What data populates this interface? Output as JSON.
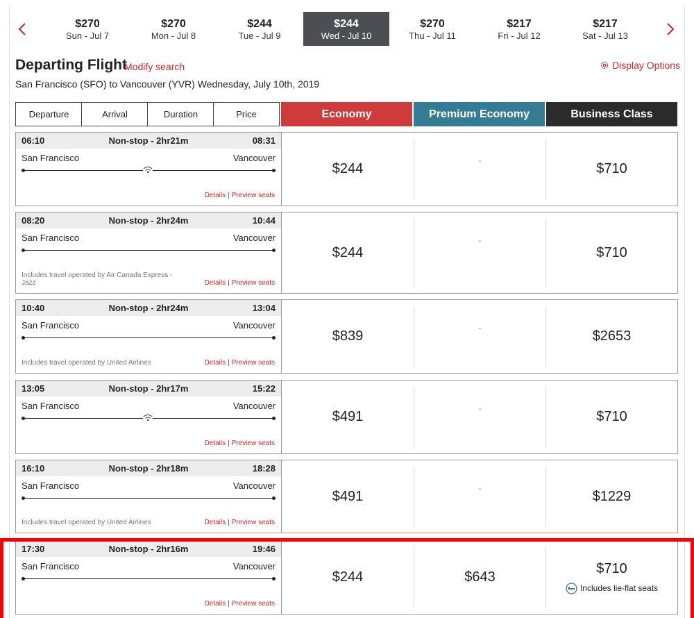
{
  "date_strip": {
    "days": [
      {
        "price": "$270",
        "date": "Sun - Jul 7"
      },
      {
        "price": "$270",
        "date": "Mon - Jul 8"
      },
      {
        "price": "$244",
        "date": "Tue - Jul 9"
      },
      {
        "price": "$244",
        "date": "Wed - Jul 10"
      },
      {
        "price": "$270",
        "date": "Thu - Jul 11"
      },
      {
        "price": "$217",
        "date": "Fri - Jul 12"
      },
      {
        "price": "$217",
        "date": "Sat - Jul 13"
      }
    ],
    "selected_index": 3,
    "prev_icon": "chevron-left-icon",
    "next_icon": "chevron-right-icon"
  },
  "header": {
    "title": "Departing Flight",
    "modify_link": "Modify search",
    "route": "San Francisco (SFO) to Vancouver (YVR)",
    "date": "Wednesday, July 10th, 2019",
    "display_options": "Display Options"
  },
  "sort": [
    "Departure",
    "Arrival",
    "Duration",
    "Price"
  ],
  "cabins": {
    "economy": "Economy",
    "premium": "Premium Economy",
    "business": "Business Class"
  },
  "colors": {
    "accent": "#c8272d",
    "economy": "#cf3a3a",
    "premium": "#347c93",
    "business": "#2b2b2b",
    "selected_day": "#4b4f54"
  },
  "links": {
    "details": "Details",
    "preview": "Preview seats"
  },
  "flights": [
    {
      "dep": "06:10",
      "stops": "Non-stop - 2hr21m",
      "arr": "08:31",
      "from": "San Francisco",
      "to": "Vancouver",
      "wifi": true,
      "operated": "",
      "economy": "$244",
      "premium": "-",
      "business": "$710"
    },
    {
      "dep": "08:20",
      "stops": "Non-stop - 2hr24m",
      "arr": "10:44",
      "from": "San Francisco",
      "to": "Vancouver",
      "wifi": false,
      "operated": "Includes travel operated by Air Canada Express - Jazz",
      "economy": "$244",
      "premium": "-",
      "business": "$710"
    },
    {
      "dep": "10:40",
      "stops": "Non-stop - 2hr24m",
      "arr": "13:04",
      "from": "San Francisco",
      "to": "Vancouver",
      "wifi": false,
      "operated": "Includes travel operated by United Airlines",
      "economy": "$839",
      "premium": "-",
      "business": "$2653"
    },
    {
      "dep": "13:05",
      "stops": "Non-stop - 2hr17m",
      "arr": "15:22",
      "from": "San Francisco",
      "to": "Vancouver",
      "wifi": true,
      "operated": "",
      "economy": "$491",
      "premium": "-",
      "business": "$710"
    },
    {
      "dep": "16:10",
      "stops": "Non-stop - 2hr18m",
      "arr": "18:28",
      "from": "San Francisco",
      "to": "Vancouver",
      "wifi": false,
      "operated": "Includes travel operated by United Airlines",
      "economy": "$491",
      "premium": "-",
      "business": "$1229"
    },
    {
      "dep": "17:30",
      "stops": "Non-stop - 2hr16m",
      "arr": "19:46",
      "from": "San Francisco",
      "to": "Vancouver",
      "wifi": false,
      "operated": "",
      "economy": "$244",
      "premium": "$643",
      "business": "$710",
      "business_note": "Includes lie-flat seats"
    }
  ]
}
